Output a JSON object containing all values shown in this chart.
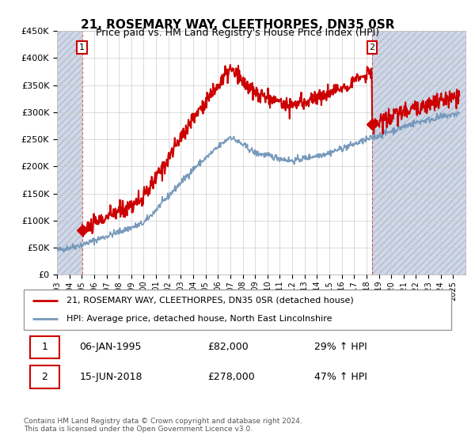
{
  "title": "21, ROSEMARY WAY, CLEETHORPES, DN35 0SR",
  "subtitle": "Price paid vs. HM Land Registry's House Price Index (HPI)",
  "ylim": [
    0,
    450000
  ],
  "yticks": [
    0,
    50000,
    100000,
    150000,
    200000,
    250000,
    300000,
    350000,
    400000,
    450000
  ],
  "sale1_date": 1995.02,
  "sale1_price": 82000,
  "sale2_date": 2018.46,
  "sale2_price": 278000,
  "line_color_property": "#cc0000",
  "line_color_hpi": "#7799bb",
  "marker_color": "#cc0000",
  "legend_label1": "21, ROSEMARY WAY, CLEETHORPES, DN35 0SR (detached house)",
  "legend_label2": "HPI: Average price, detached house, North East Lincolnshire",
  "table_row1": [
    "1",
    "06-JAN-1995",
    "£82,000",
    "29% ↑ HPI"
  ],
  "table_row2": [
    "2",
    "15-JUN-2018",
    "£278,000",
    "47% ↑ HPI"
  ],
  "footnote": "Contains HM Land Registry data © Crown copyright and database right 2024.\nThis data is licensed under the Open Government Licence v3.0.",
  "grid_color": "#cccccc",
  "hatch_color": "#d0d8e8"
}
